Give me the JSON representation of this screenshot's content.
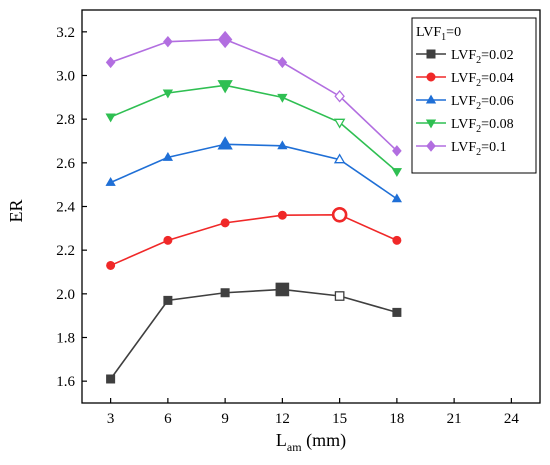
{
  "chart_data": {
    "type": "line",
    "x": [
      3,
      6,
      9,
      12,
      15,
      18
    ],
    "xlabel": {
      "main": "L",
      "sub": "am",
      "suffix": " (mm)"
    },
    "ylabel": "ER",
    "xlim": [
      1.5,
      25.5
    ],
    "ylim": [
      1.5,
      3.3
    ],
    "xticks": [
      3,
      6,
      9,
      12,
      15,
      18,
      21,
      24
    ],
    "yticks": [
      1.6,
      1.8,
      2.0,
      2.2,
      2.4,
      2.6,
      2.8,
      3.0,
      3.2
    ],
    "grid": false,
    "legend": {
      "placement": "top-right",
      "title": {
        "main": "LVF",
        "sub": "1",
        "suffix": "=0"
      }
    },
    "series": [
      {
        "name": "LVF2=0.02",
        "label_main": "LVF",
        "label_sub": "2",
        "label_suffix": "=0.02",
        "marker": "square",
        "color": "#3f3f3f",
        "values": [
          1.61,
          1.97,
          2.005,
          2.02,
          1.99,
          1.915
        ],
        "large_index": 3,
        "hollow_index": 4
      },
      {
        "name": "LVF2=0.04",
        "label_main": "LVF",
        "label_sub": "2",
        "label_suffix": "=0.04",
        "marker": "circle",
        "color": "#f02828",
        "values": [
          2.13,
          2.245,
          2.325,
          2.36,
          2.362,
          2.245
        ],
        "large_index": 4,
        "hollow_index": 4
      },
      {
        "name": "LVF2=0.06",
        "label_main": "LVF",
        "label_sub": "2",
        "label_suffix": "=0.06",
        "marker": "triangle-up",
        "color": "#1f6fd6",
        "values": [
          2.51,
          2.625,
          2.685,
          2.678,
          2.615,
          2.435
        ],
        "large_index": 2,
        "hollow_index": 4
      },
      {
        "name": "LVF2=0.08",
        "label_main": "LVF",
        "label_sub": "2",
        "label_suffix": "=0.08",
        "marker": "triangle-down",
        "color": "#2fbf52",
        "values": [
          2.81,
          2.92,
          2.955,
          2.9,
          2.785,
          2.56
        ],
        "large_index": 2,
        "hollow_index": 4
      },
      {
        "name": "LVF2=0.1",
        "label_main": "LVF",
        "label_sub": "2",
        "label_suffix": "=0.1",
        "marker": "diamond",
        "color": "#b26ee0",
        "values": [
          3.06,
          3.155,
          3.165,
          3.06,
          2.905,
          2.655
        ],
        "large_index": 2,
        "hollow_index": 4
      }
    ]
  }
}
